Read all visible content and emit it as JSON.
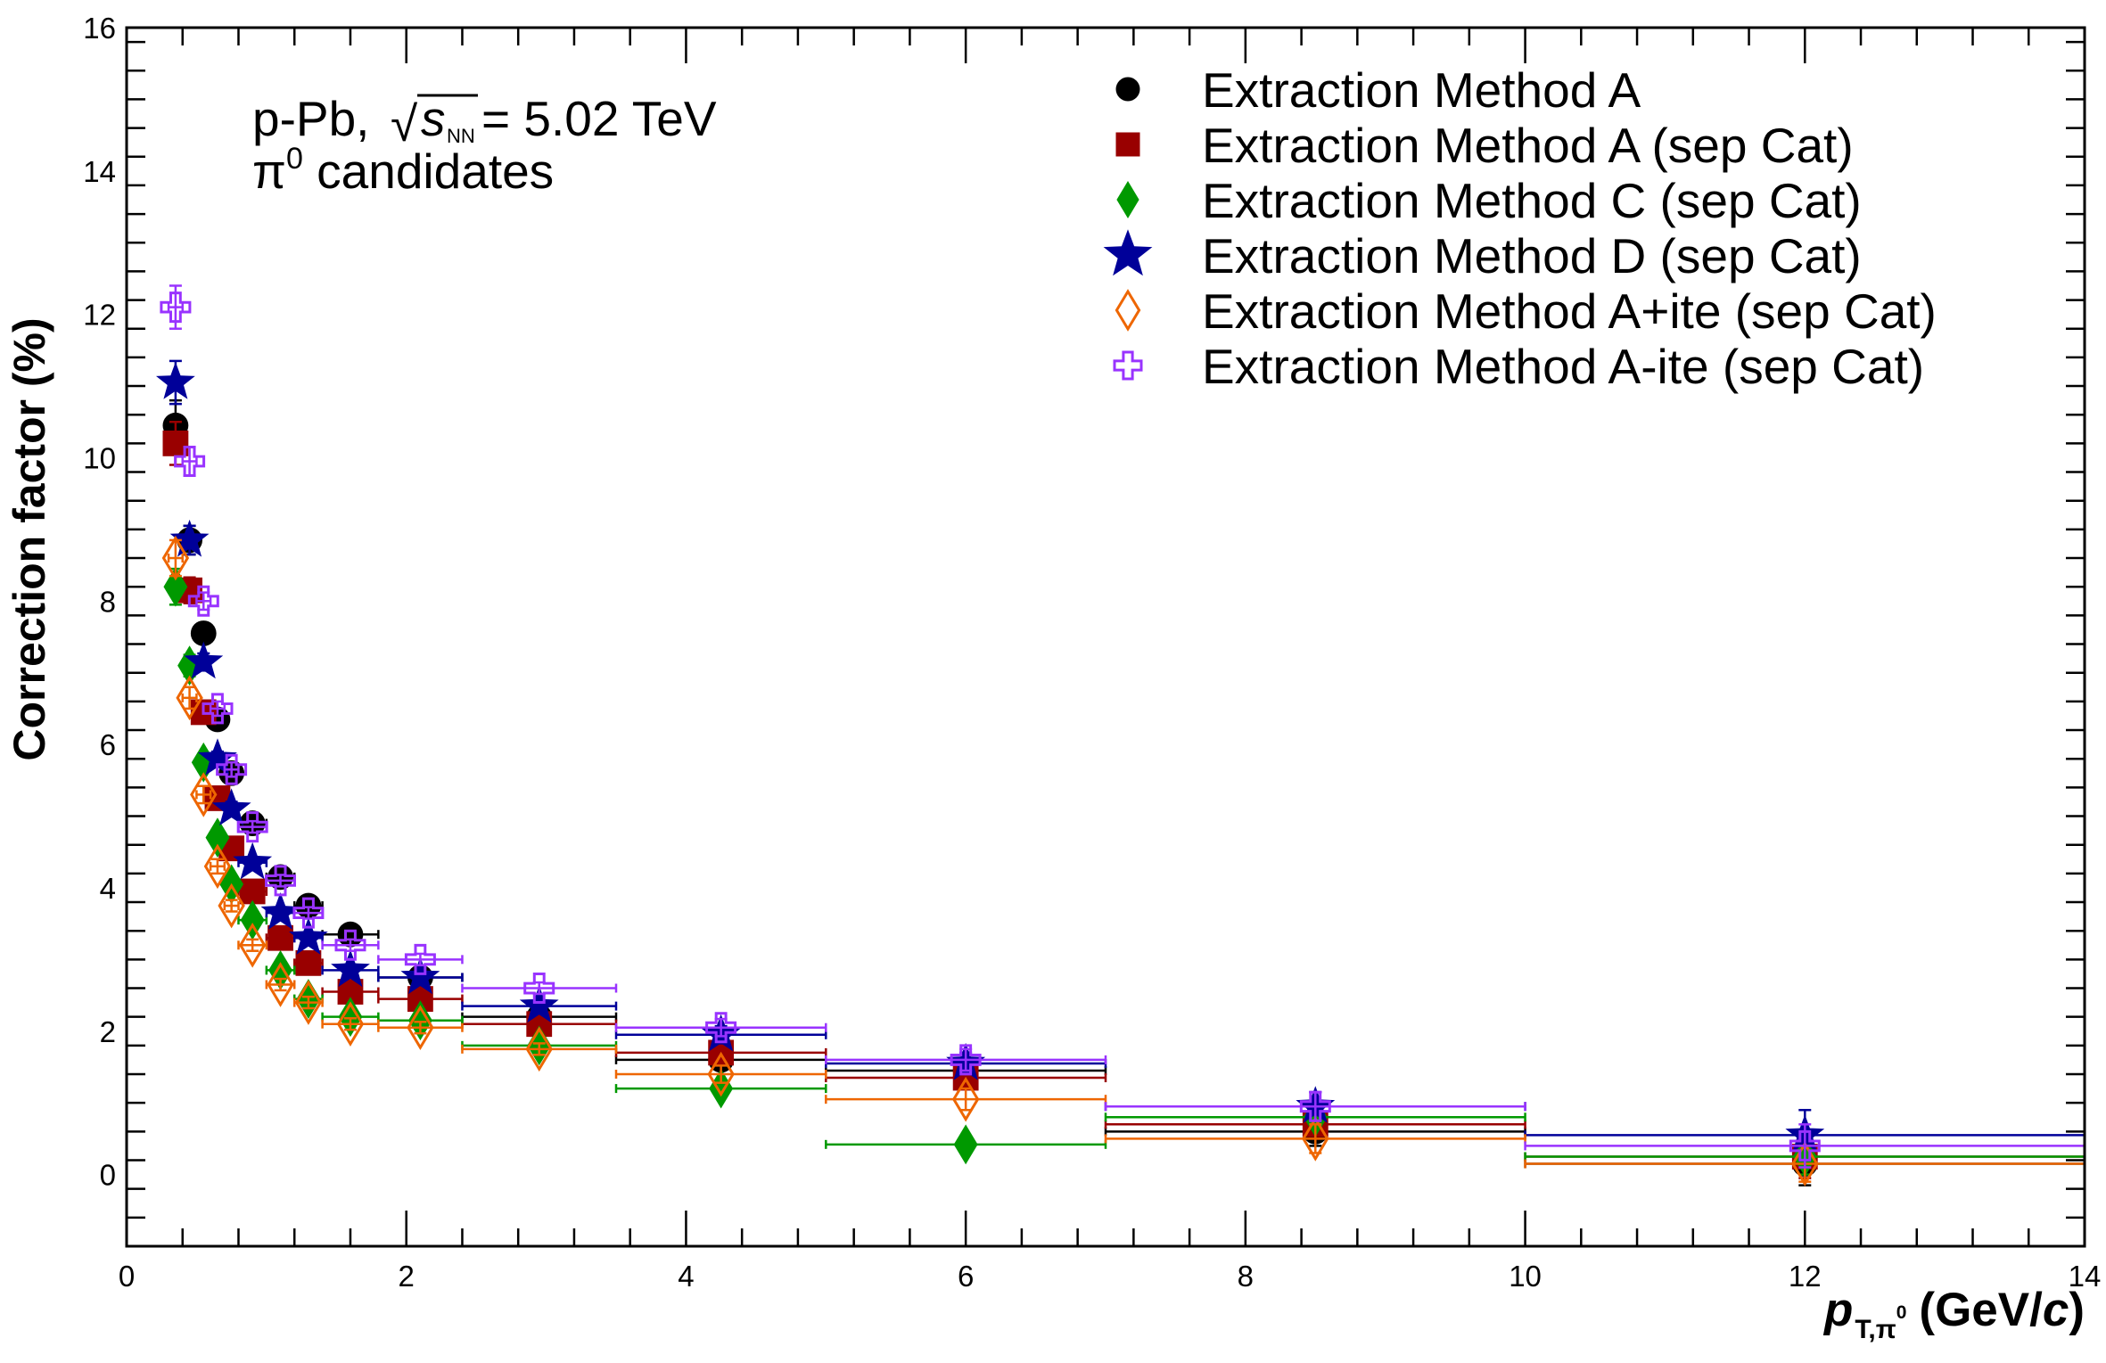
{
  "chart_data": {
    "type": "scatter",
    "title": "",
    "ylabel": "Correction factor (%)",
    "xlabel": {
      "var": "p",
      "sub": "T,π",
      "sub_sup": "0",
      "units_open": "(GeV/",
      "units_c": "c",
      "units_close": ")"
    },
    "xlim": [
      0,
      14
    ],
    "ylim": [
      -1,
      16
    ],
    "x_ticks": [
      0,
      2,
      4,
      6,
      8,
      10,
      12,
      14
    ],
    "y_ticks": [
      0,
      2,
      4,
      6,
      8,
      10,
      12,
      14,
      16
    ],
    "grid": false,
    "legend_position": "top-right",
    "annotations": {
      "system": "p-Pb,",
      "sqrt": "√",
      "s": "s",
      "s_sub": "NN",
      "energy": " = 5.02 TeV",
      "particle": "π",
      "particle_sup": "0",
      "particle_rest": " candidates"
    },
    "bins": [
      [
        0.3,
        0.4
      ],
      [
        0.4,
        0.5
      ],
      [
        0.5,
        0.6
      ],
      [
        0.6,
        0.7
      ],
      [
        0.7,
        0.8
      ],
      [
        0.8,
        1.0
      ],
      [
        1.0,
        1.2
      ],
      [
        1.2,
        1.4
      ],
      [
        1.4,
        1.8
      ],
      [
        1.8,
        2.4
      ],
      [
        2.4,
        3.5
      ],
      [
        3.5,
        5.0
      ],
      [
        5.0,
        7.0
      ],
      [
        7.0,
        10.0
      ],
      [
        10.0,
        14.0
      ]
    ],
    "series": [
      {
        "name": "Extraction Method A",
        "marker": "circle",
        "color": "#000000",
        "values": [
          10.45,
          8.85,
          7.55,
          6.35,
          5.6,
          4.9,
          4.15,
          3.75,
          3.35,
          2.75,
          2.2,
          1.6,
          1.45,
          0.6,
          0.15
        ],
        "errors": [
          0.35,
          0.2,
          0.12,
          0.1,
          0.1,
          0.08,
          0.08,
          0.08,
          0.08,
          0.08,
          0.08,
          0.12,
          0.15,
          0.2,
          0.3
        ]
      },
      {
        "name": "Extraction Method A (sep Cat)",
        "marker": "square",
        "color": "#990000",
        "values": [
          10.2,
          8.15,
          6.45,
          5.25,
          4.55,
          3.95,
          3.3,
          2.95,
          2.55,
          2.45,
          2.1,
          1.7,
          1.35,
          0.7,
          0.25
        ],
        "errors": [
          0.3,
          0.18,
          0.12,
          0.1,
          0.1,
          0.08,
          0.08,
          0.08,
          0.08,
          0.08,
          0.08,
          0.12,
          0.15,
          0.2,
          0.3
        ]
      },
      {
        "name": "Extraction Method C (sep Cat)",
        "marker": "diamond",
        "color": "#009900",
        "values": [
          8.2,
          7.1,
          5.75,
          4.7,
          4.05,
          3.55,
          2.85,
          2.45,
          2.2,
          2.15,
          1.8,
          1.2,
          0.42,
          0.8,
          0.25
        ],
        "errors": [
          0.25,
          0.15,
          0.12,
          0.1,
          0.08,
          0.08,
          0.08,
          0.08,
          0.08,
          0.08,
          0.08,
          0.1,
          0.1,
          0.15,
          0.25
        ]
      },
      {
        "name": "Extraction Method D (sep Cat)",
        "marker": "star",
        "color": "#000099",
        "values": [
          11.05,
          8.85,
          7.15,
          5.8,
          5.1,
          4.35,
          3.65,
          3.3,
          2.85,
          2.75,
          2.35,
          1.95,
          1.55,
          0.95,
          0.55
        ],
        "errors": [
          0.3,
          0.2,
          0.12,
          0.1,
          0.1,
          0.08,
          0.08,
          0.08,
          0.08,
          0.08,
          0.08,
          0.12,
          0.15,
          0.2,
          0.35
        ]
      },
      {
        "name": "Extraction Method A+ite (sep Cat)",
        "marker": "diamond-open",
        "color": "#ee6600",
        "values": [
          8.6,
          6.65,
          5.3,
          4.3,
          3.75,
          3.2,
          2.65,
          2.4,
          2.1,
          2.05,
          1.75,
          1.4,
          1.05,
          0.5,
          0.15
        ],
        "errors": [
          0.25,
          0.15,
          0.12,
          0.1,
          0.08,
          0.08,
          0.08,
          0.08,
          0.08,
          0.08,
          0.08,
          0.12,
          0.15,
          0.2,
          0.25
        ]
      },
      {
        "name": "Extraction Method A-ite (sep Cat)",
        "marker": "cross-open",
        "color": "#9933ff",
        "values": [
          12.1,
          9.95,
          8.0,
          6.5,
          5.65,
          4.85,
          4.1,
          3.65,
          3.2,
          3.0,
          2.6,
          2.05,
          1.6,
          0.95,
          0.4
        ],
        "errors": [
          0.3,
          0.2,
          0.12,
          0.1,
          0.1,
          0.08,
          0.08,
          0.08,
          0.08,
          0.08,
          0.08,
          0.12,
          0.15,
          0.2,
          0.3
        ]
      }
    ]
  }
}
